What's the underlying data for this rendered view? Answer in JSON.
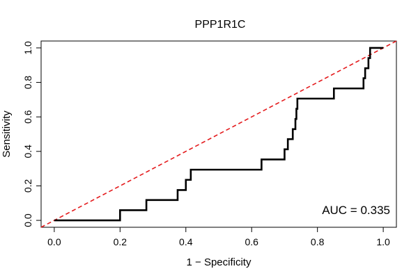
{
  "chart_data": {
    "type": "line",
    "title": "PPP1R1C",
    "xlabel": "1 − Specificity",
    "ylabel": "Sensitivity",
    "xlim": [
      -0.04,
      1.04
    ],
    "ylim": [
      -0.04,
      1.04
    ],
    "x_ticks": [
      0.0,
      0.2,
      0.4,
      0.6,
      0.8,
      1.0
    ],
    "x_tick_labels": [
      "0.0",
      "0.2",
      "0.4",
      "0.6",
      "0.8",
      "1.0"
    ],
    "y_ticks": [
      0.0,
      0.2,
      0.4,
      0.6,
      0.8,
      1.0
    ],
    "y_tick_labels": [
      "0.0",
      "0.2",
      "0.4",
      "0.6",
      "0.8",
      "1.0"
    ],
    "grid": false,
    "annotation": "AUC = 0.335",
    "series": [
      {
        "name": "ROC curve",
        "color": "#000000",
        "style": "solid",
        "x": [
          0.0,
          0.2,
          0.2,
          0.28,
          0.28,
          0.375,
          0.375,
          0.4,
          0.4,
          0.415,
          0.415,
          0.63,
          0.63,
          0.7,
          0.7,
          0.71,
          0.71,
          0.725,
          0.725,
          0.733,
          0.733,
          0.736,
          0.736,
          0.739,
          0.739,
          0.742,
          0.742,
          0.85,
          0.85,
          0.94,
          0.94,
          0.945,
          0.945,
          0.955,
          0.955,
          0.96,
          0.96,
          1.0
        ],
        "y": [
          0.0,
          0.0,
          0.059,
          0.059,
          0.118,
          0.118,
          0.176,
          0.176,
          0.235,
          0.235,
          0.294,
          0.294,
          0.353,
          0.353,
          0.412,
          0.412,
          0.471,
          0.471,
          0.529,
          0.529,
          0.588,
          0.588,
          0.647,
          0.647,
          0.706,
          0.706,
          0.706,
          0.706,
          0.765,
          0.765,
          0.824,
          0.824,
          0.882,
          0.882,
          0.941,
          0.941,
          1.0,
          1.0
        ]
      },
      {
        "name": "Reference line",
        "color": "#e41a1c",
        "style": "dashed",
        "x": [
          -0.04,
          1.04
        ],
        "y": [
          -0.04,
          1.04
        ]
      }
    ]
  }
}
